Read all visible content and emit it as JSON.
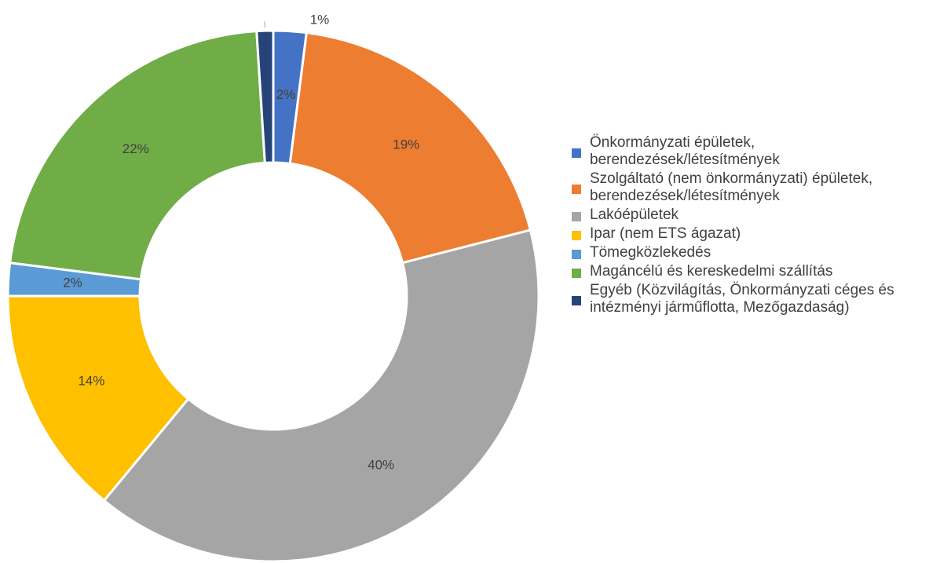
{
  "chart_data": {
    "type": "donut",
    "categories": [
      "Önkormányzati épületek, berendezések/létesítmények",
      "Szolgáltató (nem önkormányzati) épületek, berendezések/létesítmények",
      "Lakóépületek",
      "Ipar (nem ETS ágazat)",
      "Tömegközlekedés",
      "Magáncélú és kereskedelmi szállítás",
      "Egyéb (Közvilágítás, Önkormányzati céges és intézményi járműflotta, Mezőgazdaság)"
    ],
    "values": [
      2,
      19,
      40,
      14,
      2,
      22,
      1
    ],
    "value_labels": [
      "2%",
      "19%",
      "40%",
      "14%",
      "2%",
      "22%",
      "1%"
    ],
    "colors": [
      "#4472c4",
      "#ed7d31",
      "#a5a5a5",
      "#ffc000",
      "#5b9bd5",
      "#70ad47",
      "#264478"
    ],
    "legend": "right"
  }
}
